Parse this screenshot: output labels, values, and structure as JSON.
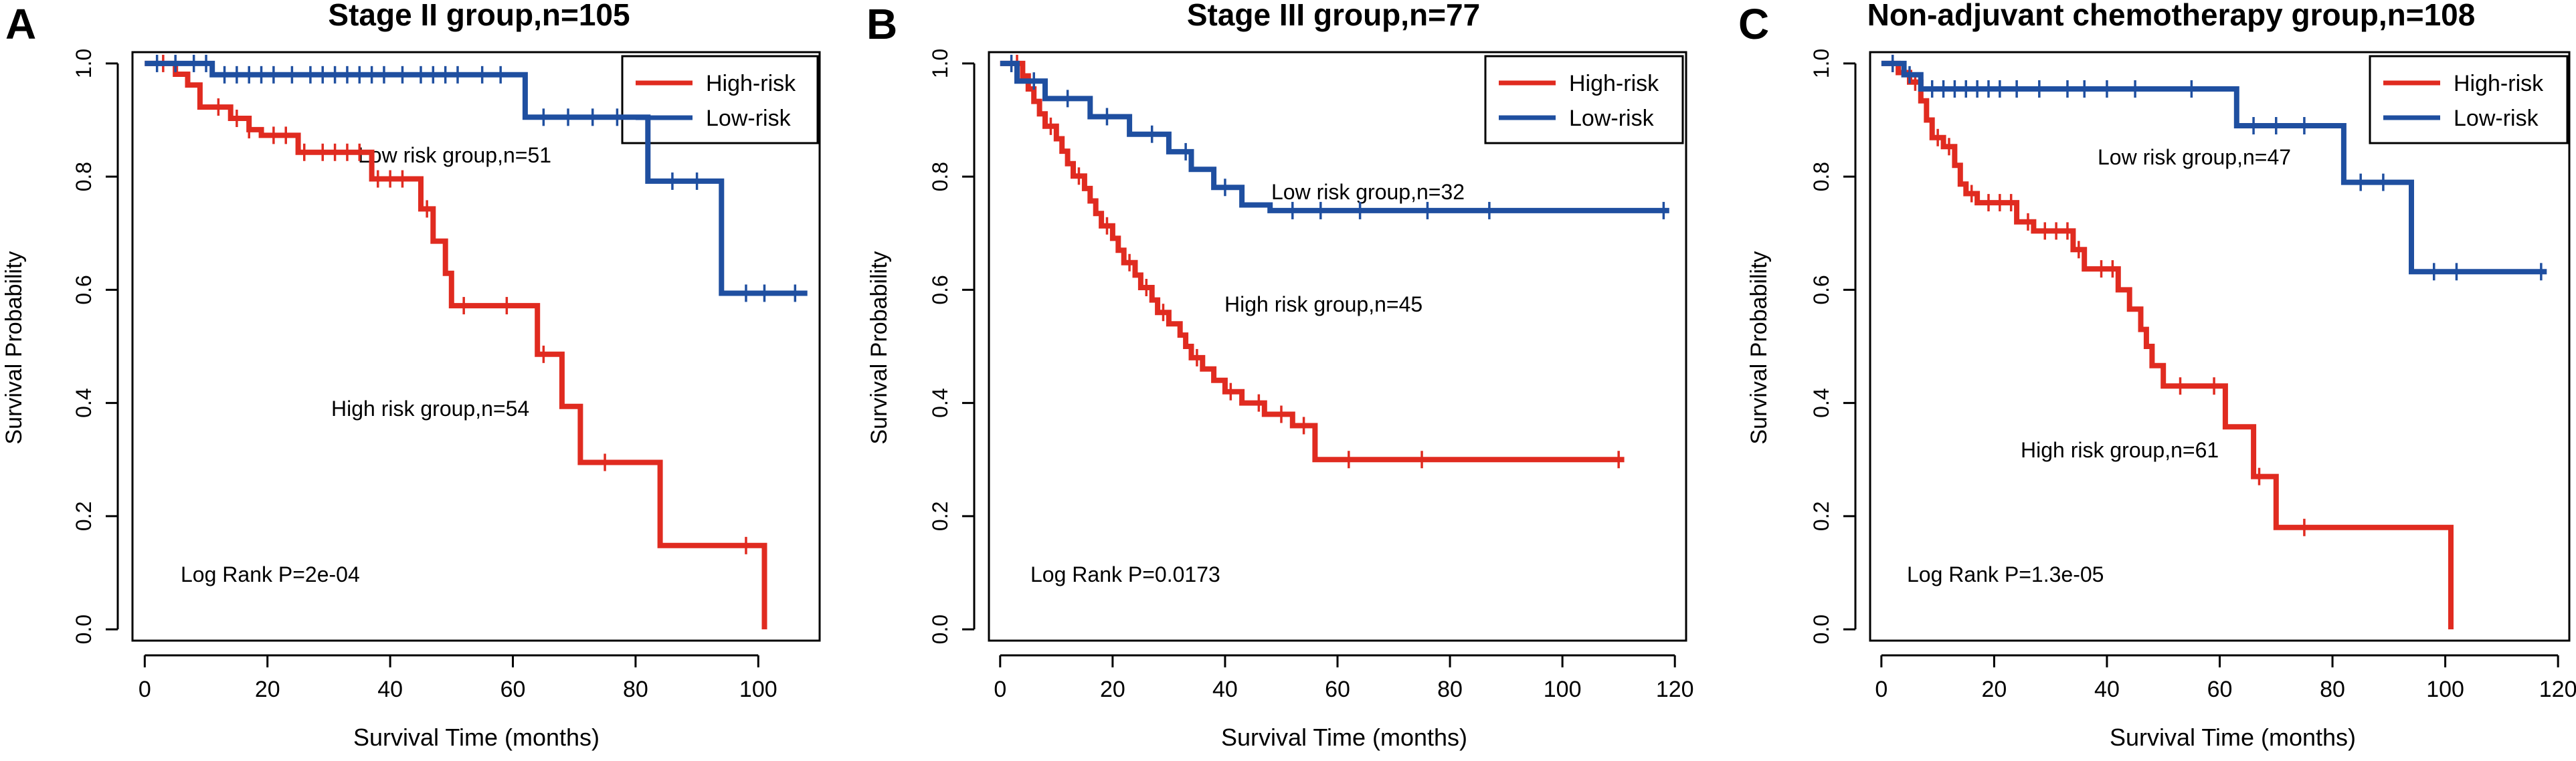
{
  "figure": {
    "panels": [
      "A",
      "B",
      "C"
    ]
  },
  "colors": {
    "high_risk": "#e02b20",
    "low_risk": "#1f4fa0",
    "axis": "#000000"
  },
  "chart_data": [
    {
      "type": "line",
      "panel_label": "A",
      "title": "Stage II group,n=105",
      "xlabel": "Survival Time (months)",
      "ylabel": "Survival Probability",
      "xlim": [
        -2,
        110
      ],
      "ylim": [
        -0.02,
        1.02
      ],
      "xticks": [
        0,
        20,
        40,
        60,
        80,
        100
      ],
      "yticks": [
        0.0,
        0.2,
        0.4,
        0.6,
        0.8,
        1.0
      ],
      "legend": [
        "High-risk",
        "Low-risk"
      ],
      "legend_position": "top-right",
      "annotations": {
        "low_group": "Low risk group,n=51",
        "high_group": "High risk group,n=54",
        "p_value": "Log Rank P=2e-04"
      },
      "series": [
        {
          "name": "High-risk",
          "color_key": "high_risk",
          "steps": [
            [
              0,
              1.0
            ],
            [
              5,
              0.981
            ],
            [
              7,
              0.962
            ],
            [
              9,
              0.923
            ],
            [
              14,
              0.903
            ],
            [
              17,
              0.883
            ],
            [
              19,
              0.873
            ],
            [
              25,
              0.843
            ],
            [
              37,
              0.796
            ],
            [
              45,
              0.743
            ],
            [
              47,
              0.686
            ],
            [
              49,
              0.629
            ],
            [
              50,
              0.572
            ],
            [
              64,
              0.486
            ],
            [
              68,
              0.394
            ],
            [
              71,
              0.295
            ],
            [
              84,
              0.148
            ],
            [
              101,
              0.0
            ]
          ],
          "end": 101,
          "censors": [
            [
              3,
              1.0
            ],
            [
              12,
              0.923
            ],
            [
              15,
              0.903
            ],
            [
              17,
              0.883
            ],
            [
              21,
              0.873
            ],
            [
              23,
              0.873
            ],
            [
              26,
              0.843
            ],
            [
              29,
              0.843
            ],
            [
              31,
              0.843
            ],
            [
              33,
              0.843
            ],
            [
              35,
              0.843
            ],
            [
              38,
              0.796
            ],
            [
              40,
              0.796
            ],
            [
              42,
              0.796
            ],
            [
              46,
              0.743
            ],
            [
              52,
              0.572
            ],
            [
              59,
              0.572
            ],
            [
              65,
              0.486
            ],
            [
              75,
              0.295
            ],
            [
              98,
              0.148
            ]
          ]
        },
        {
          "name": "Low-risk",
          "color_key": "low_risk",
          "steps": [
            [
              0,
              1.0
            ],
            [
              11,
              0.98
            ],
            [
              62,
              0.905
            ],
            [
              82,
              0.792
            ],
            [
              94,
              0.594
            ]
          ],
          "end": 108,
          "censors": [
            [
              2,
              1.0
            ],
            [
              5,
              1.0
            ],
            [
              8,
              1.0
            ],
            [
              10,
              1.0
            ],
            [
              13,
              0.98
            ],
            [
              15,
              0.98
            ],
            [
              17,
              0.98
            ],
            [
              19,
              0.98
            ],
            [
              21,
              0.98
            ],
            [
              24,
              0.98
            ],
            [
              27,
              0.98
            ],
            [
              29,
              0.98
            ],
            [
              31,
              0.98
            ],
            [
              33,
              0.98
            ],
            [
              35,
              0.98
            ],
            [
              37,
              0.98
            ],
            [
              39,
              0.98
            ],
            [
              42,
              0.98
            ],
            [
              45,
              0.98
            ],
            [
              47,
              0.98
            ],
            [
              49,
              0.98
            ],
            [
              51,
              0.98
            ],
            [
              55,
              0.98
            ],
            [
              58,
              0.98
            ],
            [
              65,
              0.905
            ],
            [
              69,
              0.905
            ],
            [
              73,
              0.905
            ],
            [
              77,
              0.905
            ],
            [
              86,
              0.792
            ],
            [
              90,
              0.792
            ],
            [
              98,
              0.594
            ],
            [
              101,
              0.594
            ],
            [
              106,
              0.594
            ]
          ]
        }
      ]
    },
    {
      "type": "line",
      "panel_label": "B",
      "title": "Stage III group,n=77",
      "xlabel": "Survival Time (months)",
      "ylabel": "Survival Probability",
      "xlim": [
        -2,
        122
      ],
      "ylim": [
        -0.02,
        1.02
      ],
      "xticks": [
        0,
        20,
        40,
        60,
        80,
        100,
        120
      ],
      "yticks": [
        0.0,
        0.2,
        0.4,
        0.6,
        0.8,
        1.0
      ],
      "legend": [
        "High-risk",
        "Low-risk"
      ],
      "legend_position": "top-right",
      "annotations": {
        "low_group": "Low risk group,n=32",
        "high_group": "High risk group,n=45",
        "p_value": "Log Rank P=0.0173"
      },
      "series": [
        {
          "name": "High-risk",
          "color_key": "high_risk",
          "steps": [
            [
              0,
              1.0
            ],
            [
              4,
              0.978
            ],
            [
              5,
              0.955
            ],
            [
              6,
              0.933
            ],
            [
              7,
              0.911
            ],
            [
              8,
              0.889
            ],
            [
              10,
              0.867
            ],
            [
              11,
              0.845
            ],
            [
              12,
              0.823
            ],
            [
              13,
              0.801
            ],
            [
              15,
              0.779
            ],
            [
              16,
              0.757
            ],
            [
              17,
              0.735
            ],
            [
              18,
              0.713
            ],
            [
              20,
              0.691
            ],
            [
              21,
              0.67
            ],
            [
              22,
              0.648
            ],
            [
              24,
              0.626
            ],
            [
              25,
              0.604
            ],
            [
              27,
              0.582
            ],
            [
              28,
              0.56
            ],
            [
              30,
              0.54
            ],
            [
              32,
              0.52
            ],
            [
              33,
              0.5
            ],
            [
              34,
              0.48
            ],
            [
              36,
              0.46
            ],
            [
              38,
              0.44
            ],
            [
              40,
              0.42
            ],
            [
              43,
              0.4
            ],
            [
              47,
              0.38
            ],
            [
              52,
              0.36
            ],
            [
              56,
              0.3
            ]
          ],
          "end": 111,
          "censors": [
            [
              3,
              1.0
            ],
            [
              9,
              0.889
            ],
            [
              14,
              0.801
            ],
            [
              19,
              0.713
            ],
            [
              23,
              0.648
            ],
            [
              26,
              0.604
            ],
            [
              29,
              0.56
            ],
            [
              35,
              0.48
            ],
            [
              41,
              0.42
            ],
            [
              46,
              0.4
            ],
            [
              50,
              0.38
            ],
            [
              54,
              0.36
            ],
            [
              62,
              0.3
            ],
            [
              75,
              0.3
            ],
            [
              110,
              0.3
            ]
          ]
        },
        {
          "name": "Low-risk",
          "color_key": "low_risk",
          "steps": [
            [
              0,
              1.0
            ],
            [
              3,
              0.969
            ],
            [
              8,
              0.938
            ],
            [
              16,
              0.906
            ],
            [
              23,
              0.875
            ],
            [
              30,
              0.844
            ],
            [
              34,
              0.813
            ],
            [
              38,
              0.781
            ],
            [
              43,
              0.75
            ],
            [
              48,
              0.74
            ]
          ],
          "end": 119,
          "censors": [
            [
              2,
              1.0
            ],
            [
              6,
              0.969
            ],
            [
              12,
              0.938
            ],
            [
              19,
              0.906
            ],
            [
              27,
              0.875
            ],
            [
              33,
              0.844
            ],
            [
              40,
              0.781
            ],
            [
              52,
              0.74
            ],
            [
              57,
              0.74
            ],
            [
              64,
              0.74
            ],
            [
              76,
              0.74
            ],
            [
              87,
              0.74
            ],
            [
              118,
              0.74
            ]
          ]
        }
      ]
    },
    {
      "type": "line",
      "panel_label": "C",
      "title": "Non-adjuvant chemotherapy group,n=108",
      "xlabel": "Survival Time (months)",
      "ylabel": "Survival Probability",
      "xlim": [
        -2,
        122
      ],
      "ylim": [
        -0.02,
        1.02
      ],
      "xticks": [
        0,
        20,
        40,
        60,
        80,
        100,
        120
      ],
      "yticks": [
        0.0,
        0.2,
        0.4,
        0.6,
        0.8,
        1.0
      ],
      "legend": [
        "High-risk",
        "Low-risk"
      ],
      "legend_position": "top-right",
      "annotations": {
        "low_group": "Low risk group,n=47",
        "high_group": "High risk group,n=61",
        "p_value": "Log Rank P=1.3e-05"
      },
      "series": [
        {
          "name": "High-risk",
          "color_key": "high_risk",
          "steps": [
            [
              0,
              1.0
            ],
            [
              3,
              0.984
            ],
            [
              5,
              0.967
            ],
            [
              7,
              0.934
            ],
            [
              8,
              0.9
            ],
            [
              9,
              0.869
            ],
            [
              11,
              0.853
            ],
            [
              13,
              0.82
            ],
            [
              14,
              0.787
            ],
            [
              15,
              0.77
            ],
            [
              17,
              0.754
            ],
            [
              24,
              0.72
            ],
            [
              27,
              0.704
            ],
            [
              34,
              0.671
            ],
            [
              36,
              0.637
            ],
            [
              42,
              0.6
            ],
            [
              44,
              0.566
            ],
            [
              46,
              0.53
            ],
            [
              47,
              0.5
            ],
            [
              48,
              0.466
            ],
            [
              50,
              0.43
            ],
            [
              61,
              0.358
            ],
            [
              66,
              0.27
            ],
            [
              70,
              0.18
            ],
            [
              101,
              0.0
            ]
          ],
          "end": 101,
          "censors": [
            [
              2,
              1.0
            ],
            [
              6,
              0.967
            ],
            [
              10,
              0.869
            ],
            [
              12,
              0.853
            ],
            [
              16,
              0.77
            ],
            [
              19,
              0.754
            ],
            [
              21,
              0.754
            ],
            [
              23,
              0.754
            ],
            [
              26,
              0.72
            ],
            [
              29,
              0.704
            ],
            [
              31,
              0.704
            ],
            [
              33,
              0.704
            ],
            [
              35,
              0.671
            ],
            [
              39,
              0.637
            ],
            [
              41,
              0.637
            ],
            [
              53,
              0.43
            ],
            [
              59,
              0.43
            ],
            [
              67,
              0.27
            ],
            [
              75,
              0.18
            ]
          ]
        },
        {
          "name": "Low-risk",
          "color_key": "low_risk",
          "steps": [
            [
              0,
              1.0
            ],
            [
              4,
              0.98
            ],
            [
              7,
              0.955
            ],
            [
              63,
              0.89
            ],
            [
              82,
              0.79
            ],
            [
              94,
              0.632
            ]
          ],
          "end": 118,
          "censors": [
            [
              2,
              1.0
            ],
            [
              5,
              0.98
            ],
            [
              9,
              0.955
            ],
            [
              11,
              0.955
            ],
            [
              13,
              0.955
            ],
            [
              15,
              0.955
            ],
            [
              17,
              0.955
            ],
            [
              19,
              0.955
            ],
            [
              21,
              0.955
            ],
            [
              24,
              0.955
            ],
            [
              28,
              0.955
            ],
            [
              33,
              0.955
            ],
            [
              36,
              0.955
            ],
            [
              40,
              0.955
            ],
            [
              45,
              0.955
            ],
            [
              55,
              0.955
            ],
            [
              66,
              0.89
            ],
            [
              70,
              0.89
            ],
            [
              75,
              0.89
            ],
            [
              85,
              0.79
            ],
            [
              89,
              0.79
            ],
            [
              98,
              0.632
            ],
            [
              102,
              0.632
            ],
            [
              117,
              0.632
            ]
          ]
        }
      ]
    }
  ]
}
